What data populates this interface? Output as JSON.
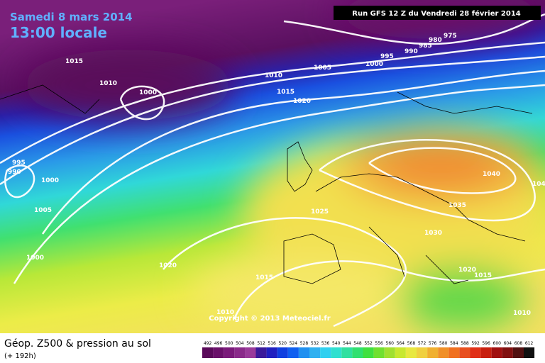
{
  "header": {
    "date": "Samedi 8 mars 2014",
    "time": "13:00 locale",
    "run": "Run GFS 12 Z du Vendredi 28 février 2014"
  },
  "isobar_labels": [
    "1015",
    "1010",
    "1000",
    "1005",
    "1000",
    "995",
    "990",
    "985",
    "980",
    "975",
    "1010",
    "1015",
    "1020",
    "995",
    "990",
    "1000",
    "1005",
    "1000",
    "1040",
    "104",
    "1035",
    "1025",
    "1030",
    "1020",
    "1015",
    "1020",
    "1015",
    "1010",
    "1010"
  ],
  "copyright": "Copyright © 2013 Meteociel.fr",
  "footer": {
    "title": "Géop. Z500 & pression au sol",
    "lead": "(+ 192h)"
  },
  "colorbar": {
    "values": [
      492,
      496,
      500,
      504,
      508,
      512,
      516,
      520,
      524,
      528,
      532,
      536,
      540,
      544,
      548,
      552,
      556,
      560,
      564,
      568,
      572,
      576,
      580,
      584,
      588,
      592,
      596,
      600,
      604,
      608,
      612
    ],
    "colors": [
      "#5a0a5a",
      "#6a106a",
      "#7a1a7a",
      "#8a2a8a",
      "#9a3a9a",
      "#3a1a9a",
      "#2020c0",
      "#1040e0",
      "#1060f0",
      "#2090f0",
      "#30b0f0",
      "#30d0f0",
      "#30e0d0",
      "#30e0a0",
      "#30e070",
      "#40e040",
      "#70e030",
      "#a0e030",
      "#c8e830",
      "#e8e840",
      "#f0d040",
      "#f0b030",
      "#f09028",
      "#f07020",
      "#e85020",
      "#e03018",
      "#c82010",
      "#a01010",
      "#801010",
      "#501010",
      "#101010"
    ]
  }
}
